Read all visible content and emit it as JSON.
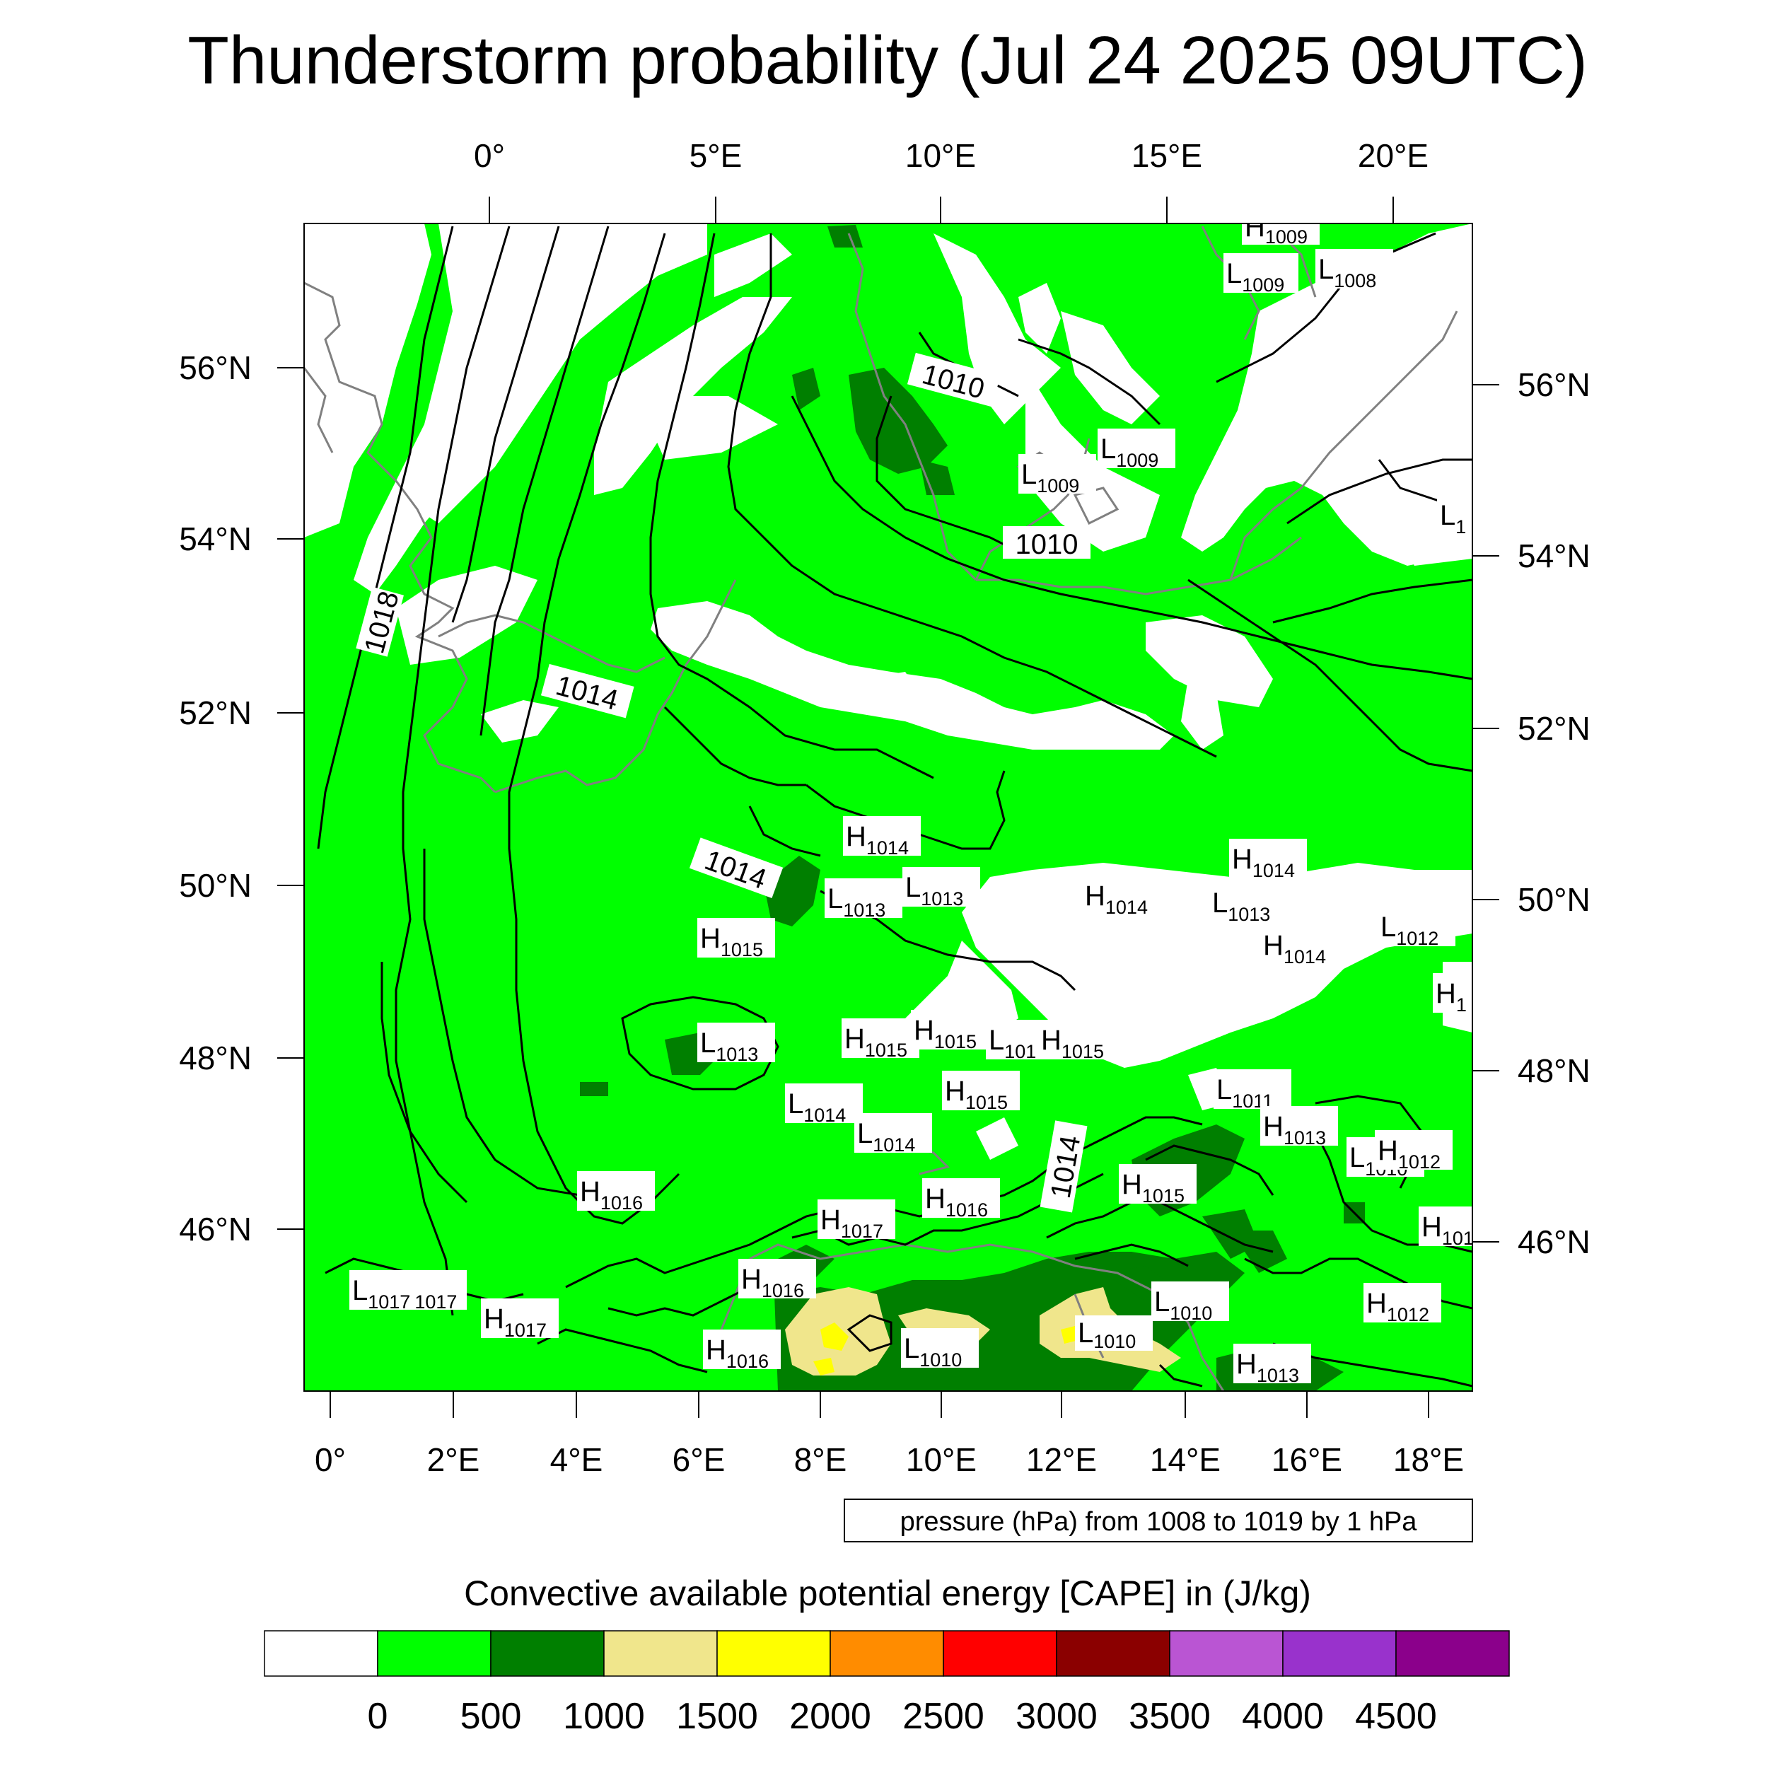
{
  "title": "Thunderstorm probability (Jul 24 2025 09UTC)",
  "top_lon_labels": [
    "0°",
    "5°E",
    "10°E",
    "15°E",
    "20°E"
  ],
  "bottom_lon_labels": [
    "0°",
    "2°E",
    "4°E",
    "6°E",
    "8°E",
    "10°E",
    "12°E",
    "14°E",
    "16°E",
    "18°E"
  ],
  "left_lat_labels": [
    "56°N",
    "54°N",
    "52°N",
    "50°N",
    "48°N",
    "46°N"
  ],
  "right_lat_labels": [
    "56°N",
    "54°N",
    "52°N",
    "50°N",
    "48°N",
    "46°N"
  ],
  "isobar_labels": [
    "1018",
    "1014",
    "1014",
    "1010",
    "1010",
    "1014"
  ],
  "pressure_centers": [
    {
      "t": "H",
      "v": "1009"
    },
    {
      "t": "L",
      "v": "1009"
    },
    {
      "t": "L",
      "v": "1008"
    },
    {
      "t": "L",
      "v": "1009"
    },
    {
      "t": "L",
      "v": "1009"
    },
    {
      "t": "L",
      "v": "1"
    },
    {
      "t": "H",
      "v": "1014"
    },
    {
      "t": "L",
      "v": "1013"
    },
    {
      "t": "L",
      "v": "1013"
    },
    {
      "t": "H",
      "v": "1014"
    },
    {
      "t": "L",
      "v": "1013"
    },
    {
      "t": "H",
      "v": "1014"
    },
    {
      "t": "H",
      "v": "1014"
    },
    {
      "t": "L",
      "v": "1012"
    },
    {
      "t": "H",
      "v": "1015"
    },
    {
      "t": "H",
      "v": "1"
    },
    {
      "t": "L",
      "v": "1013"
    },
    {
      "t": "H",
      "v": "1015"
    },
    {
      "t": "H",
      "v": "1015"
    },
    {
      "t": "L",
      "v": "101"
    },
    {
      "t": "H",
      "v": "1015"
    },
    {
      "t": "L",
      "v": "1011"
    },
    {
      "t": "L",
      "v": "1014"
    },
    {
      "t": "H",
      "v": "1015"
    },
    {
      "t": "L",
      "v": "1014"
    },
    {
      "t": "H",
      "v": "1013"
    },
    {
      "t": "L",
      "v": "1010"
    },
    {
      "t": "H",
      "v": "1012"
    },
    {
      "t": "H",
      "v": "1016"
    },
    {
      "t": "H",
      "v": "1016"
    },
    {
      "t": "H",
      "v": "1015"
    },
    {
      "t": "H",
      "v": "1017"
    },
    {
      "t": "H",
      "v": "101"
    },
    {
      "t": "L",
      "v": "1017"
    },
    {
      "t": "H",
      "v": "1017"
    },
    {
      "t": "H",
      "v": "1016"
    },
    {
      "t": "L",
      "v": "1010"
    },
    {
      "t": "H",
      "v": "1012"
    },
    {
      "t": "H",
      "v": "1016"
    },
    {
      "t": "L",
      "v": "1010"
    },
    {
      "t": "L",
      "v": "1010"
    },
    {
      "t": "H",
      "v": "1013"
    }
  ],
  "stray_label": "1017",
  "pressure_note": "pressure (hPa) from 1008 to 1019 by 1 hPa",
  "colorbar": {
    "title": "Convective available potential energy [CAPE] in (J/kg)",
    "colors": [
      "#ffffff",
      "#00ff00",
      "#007f00",
      "#f0e68c",
      "#ffff00",
      "#ff8c00",
      "#ff0000",
      "#8b0000",
      "#ba55d3",
      "#9932cc",
      "#8b008b"
    ],
    "labels": [
      "0",
      "500",
      "1000",
      "1500",
      "2000",
      "2500",
      "3000",
      "3500",
      "4000",
      "4500"
    ]
  },
  "map_colors": {
    "no_cape": "#ffffff",
    "low": "#00ff00",
    "mid": "#007f00",
    "khaki": "#f0e68c",
    "yellow": "#ffff00",
    "coast": "#808080",
    "isobar": "#000000"
  }
}
